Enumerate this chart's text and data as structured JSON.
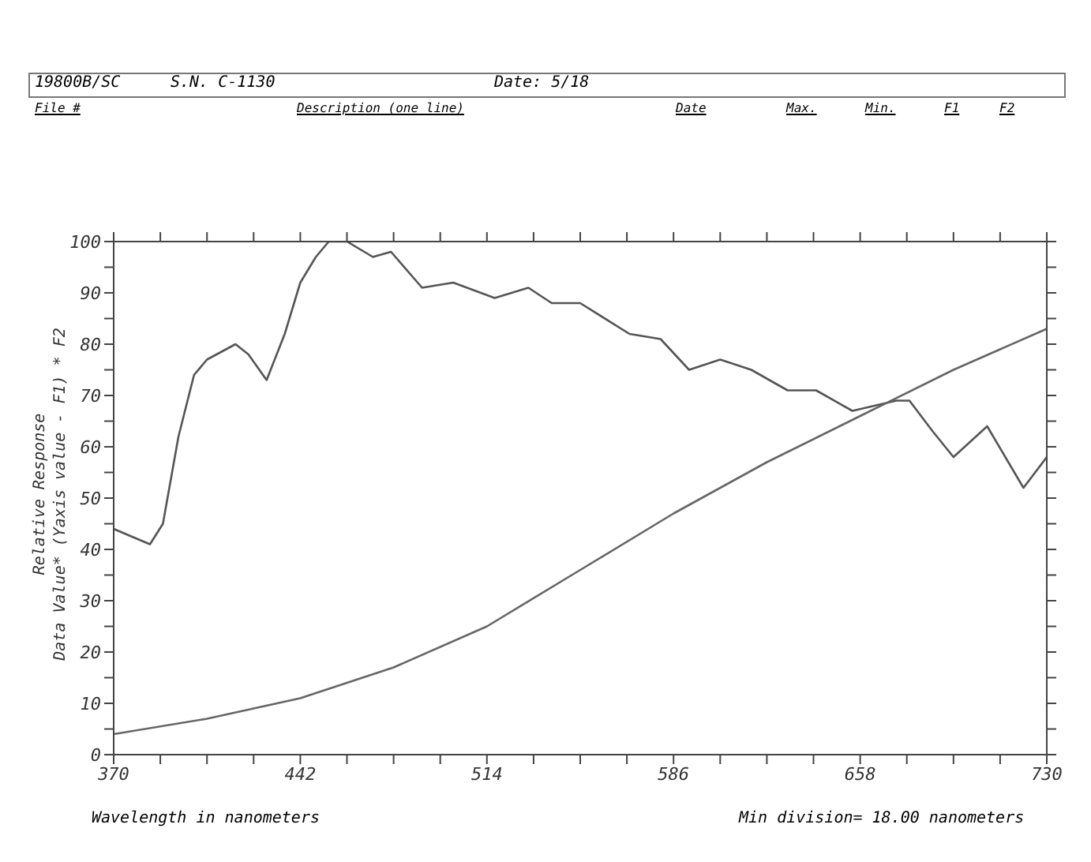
{
  "chart_data": {
    "type": "line",
    "xlabel": "Wavelength in  nanometers",
    "ylabel": "Relative Response\nData Value* (Yaxis value - F1) * F2",
    "annotations": [
      "19800B/SC",
      "S.N. C-1130",
      "Date: 5/18",
      "File #",
      "Description (one line)",
      "Date",
      "Max.",
      "Min.",
      "F1",
      "F2",
      "Min division= 18.00 nanometers"
    ],
    "xlim": [
      370,
      730
    ],
    "xticks": [
      370,
      {
        "value": 388,
        "label": null
      },
      {
        "value": 406,
        "label": null
      },
      {
        "value": 424,
        "label": null
      },
      442,
      {
        "value": 460,
        "label": null
      },
      {
        "value": 478,
        "label": null
      },
      {
        "value": 496,
        "label": null
      },
      514,
      {
        "value": 532,
        "label": null
      },
      {
        "value": 550,
        "label": null
      },
      {
        "value": 568,
        "label": null
      },
      586,
      {
        "value": 604,
        "label": null
      },
      {
        "value": 622,
        "label": null
      },
      {
        "value": 640,
        "label": null
      },
      658,
      {
        "value": 676,
        "label": null
      },
      {
        "value": 694,
        "label": null
      },
      {
        "value": 712,
        "label": null
      },
      730
    ],
    "ylim": [
      0,
      100
    ],
    "yticks": [
      0,
      {
        "value": 5,
        "label": null
      },
      10,
      {
        "value": 15,
        "label": null
      },
      20,
      {
        "value": 25,
        "label": null
      },
      30,
      {
        "value": 35,
        "label": null
      },
      40,
      {
        "value": 45,
        "label": null
      },
      50,
      {
        "value": 55,
        "label": null
      },
      60,
      {
        "value": 65,
        "label": null
      },
      70,
      {
        "value": 75,
        "label": null
      },
      80,
      {
        "value": 85,
        "label": null
      },
      90,
      {
        "value": 95,
        "label": null
      },
      100
    ],
    "marker": "none",
    "line_style": "solid",
    "series": [
      {
        "color": "#555555",
        "x": [
          370,
          384,
          389,
          395,
          401,
          406,
          417,
          422,
          429,
          436,
          442,
          448,
          453,
          460,
          470,
          477,
          489,
          501,
          517,
          530,
          539,
          550,
          569,
          581,
          592,
          604,
          616,
          630,
          641,
          655,
          672,
          677,
          686,
          694,
          707,
          721,
          730
        ],
        "values": [
          44,
          41,
          45,
          62,
          74,
          77,
          80,
          78,
          73,
          82,
          92,
          97,
          100,
          100,
          97,
          98,
          91,
          92,
          89,
          91,
          88,
          88,
          82,
          81,
          75,
          77,
          75,
          71,
          71,
          67,
          69,
          69,
          63,
          58,
          64,
          52,
          58
        ]
      },
      {
        "color": "#666666",
        "x": [
          370,
          406,
          442,
          478,
          514,
          550,
          586,
          622,
          658,
          694,
          730
        ],
        "values": [
          4,
          7,
          11,
          17,
          25,
          36,
          47,
          57,
          66,
          75,
          83
        ]
      }
    ]
  }
}
